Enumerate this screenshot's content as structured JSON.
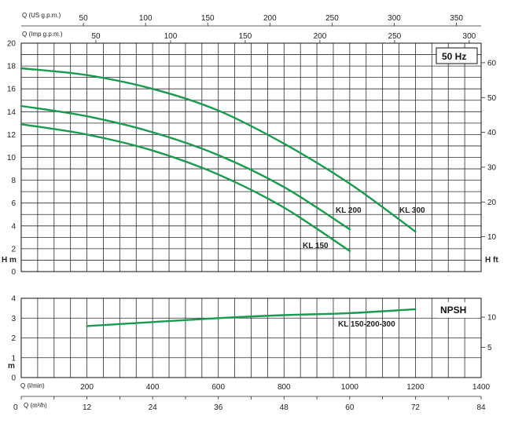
{
  "colors": {
    "curve": "#1a9a50",
    "grid": "#2b2b2b",
    "text": "#222222"
  },
  "top_axes": {
    "us_gpm_label": "Q (US g.p.m.)",
    "us_gpm_ticks": [
      "50",
      "100",
      "150",
      "200",
      "250",
      "300",
      "350"
    ],
    "imp_gpm_label": "Q (Imp g.p.m.)",
    "imp_gpm_ticks": [
      "50",
      "100",
      "150",
      "200",
      "250",
      "300"
    ]
  },
  "bottom_axes": {
    "lmin_label": "Q (l/min)",
    "lmin_ticks": [
      "200",
      "400",
      "600",
      "800",
      "1000",
      "1200",
      "1400"
    ],
    "m3h_zero": "0",
    "m3h_label": "Q (m³/h)",
    "m3h_ticks": [
      "12",
      "24",
      "36",
      "48",
      "60",
      "72",
      "84"
    ]
  },
  "chart_data": [
    {
      "type": "line",
      "title": "50 Hz",
      "xlabel": "Q (l/min)",
      "ylabel": "H m",
      "ylabel_right": "H ft",
      "xlim": [
        0,
        1400
      ],
      "ylim": [
        0,
        20
      ],
      "y_ticks": [
        "0",
        "2",
        "4",
        "6",
        "8",
        "10",
        "12",
        "14",
        "16",
        "18",
        "20"
      ],
      "y_right_ticks": [
        "10",
        "20",
        "30",
        "40",
        "50",
        "60"
      ],
      "grid": true,
      "series": [
        {
          "name": "KL 300",
          "x": [
            0,
            200,
            400,
            600,
            800,
            1000,
            1200
          ],
          "y": [
            17.8,
            17.2,
            16.0,
            14.1,
            11.2,
            7.7,
            3.5
          ]
        },
        {
          "name": "KL 200",
          "x": [
            0,
            200,
            400,
            600,
            800,
            1000
          ],
          "y": [
            14.5,
            13.6,
            12.2,
            10.2,
            7.4,
            3.7
          ]
        },
        {
          "name": "KL 150",
          "x": [
            0,
            200,
            400,
            600,
            800,
            1000
          ],
          "y": [
            12.9,
            12.0,
            10.6,
            8.5,
            5.6,
            1.8
          ]
        }
      ]
    },
    {
      "type": "line",
      "title": "NPSH",
      "xlabel": "Q (l/min)",
      "ylabel": "m",
      "xlim": [
        0,
        1400
      ],
      "ylim": [
        0,
        4
      ],
      "y_ticks": [
        "0",
        "1",
        "2",
        "3",
        "4"
      ],
      "y_right_ticks": [
        "5",
        "10"
      ],
      "grid": true,
      "series": [
        {
          "name": "KL 150-200-300",
          "x": [
            200,
            400,
            600,
            800,
            1000,
            1200
          ],
          "y": [
            2.6,
            2.8,
            3.0,
            3.15,
            3.25,
            3.45
          ]
        }
      ]
    }
  ]
}
